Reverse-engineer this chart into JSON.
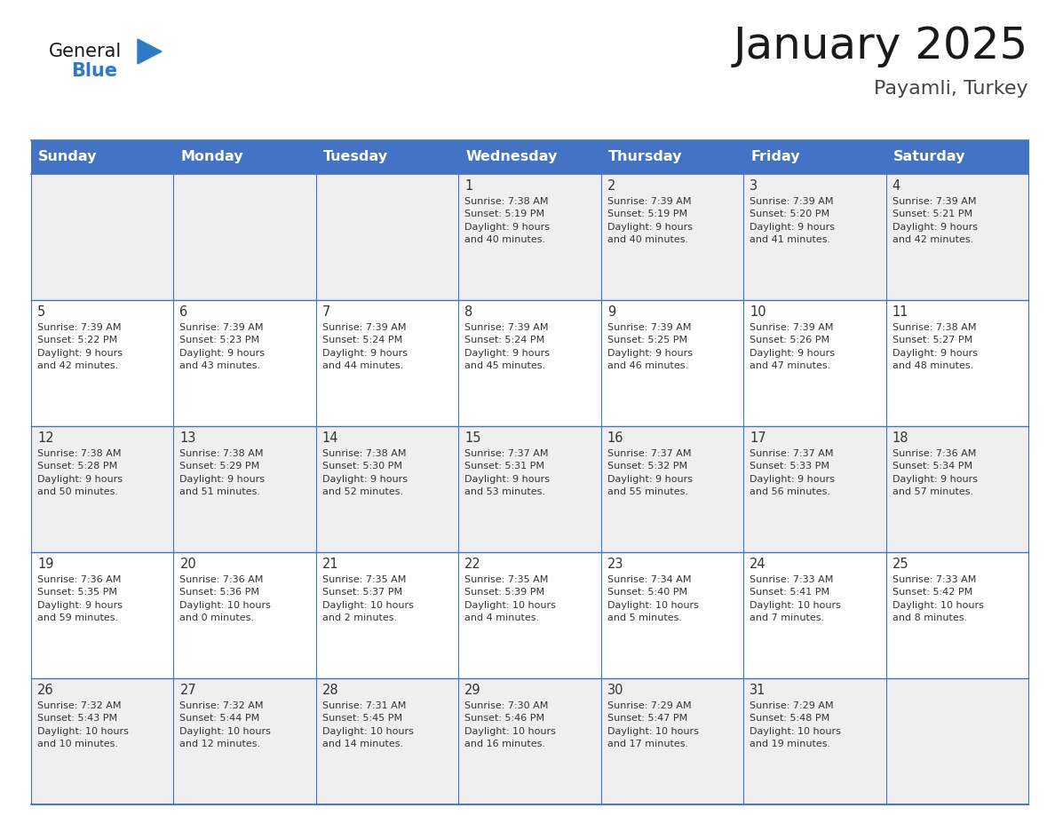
{
  "title": "January 2025",
  "subtitle": "Payamli, Turkey",
  "days_of_week": [
    "Sunday",
    "Monday",
    "Tuesday",
    "Wednesday",
    "Thursday",
    "Friday",
    "Saturday"
  ],
  "header_bg": "#4472C4",
  "header_text_color": "#FFFFFF",
  "row_bg_odd": "#EFEFEF",
  "row_bg_even": "#FFFFFF",
  "border_color": "#4472C4",
  "day_number_color": "#333333",
  "cell_text_color": "#333333",
  "title_color": "#1a1a1a",
  "subtitle_color": "#444444",
  "general_text_color": "#1a1a1a",
  "blue_text_color": "#2F7AC4",
  "triangle_color": "#2F7AC4",
  "calendar": [
    [
      {
        "day": "",
        "info": ""
      },
      {
        "day": "",
        "info": ""
      },
      {
        "day": "",
        "info": ""
      },
      {
        "day": "1",
        "info": "Sunrise: 7:38 AM\nSunset: 5:19 PM\nDaylight: 9 hours\nand 40 minutes."
      },
      {
        "day": "2",
        "info": "Sunrise: 7:39 AM\nSunset: 5:19 PM\nDaylight: 9 hours\nand 40 minutes."
      },
      {
        "day": "3",
        "info": "Sunrise: 7:39 AM\nSunset: 5:20 PM\nDaylight: 9 hours\nand 41 minutes."
      },
      {
        "day": "4",
        "info": "Sunrise: 7:39 AM\nSunset: 5:21 PM\nDaylight: 9 hours\nand 42 minutes."
      }
    ],
    [
      {
        "day": "5",
        "info": "Sunrise: 7:39 AM\nSunset: 5:22 PM\nDaylight: 9 hours\nand 42 minutes."
      },
      {
        "day": "6",
        "info": "Sunrise: 7:39 AM\nSunset: 5:23 PM\nDaylight: 9 hours\nand 43 minutes."
      },
      {
        "day": "7",
        "info": "Sunrise: 7:39 AM\nSunset: 5:24 PM\nDaylight: 9 hours\nand 44 minutes."
      },
      {
        "day": "8",
        "info": "Sunrise: 7:39 AM\nSunset: 5:24 PM\nDaylight: 9 hours\nand 45 minutes."
      },
      {
        "day": "9",
        "info": "Sunrise: 7:39 AM\nSunset: 5:25 PM\nDaylight: 9 hours\nand 46 minutes."
      },
      {
        "day": "10",
        "info": "Sunrise: 7:39 AM\nSunset: 5:26 PM\nDaylight: 9 hours\nand 47 minutes."
      },
      {
        "day": "11",
        "info": "Sunrise: 7:38 AM\nSunset: 5:27 PM\nDaylight: 9 hours\nand 48 minutes."
      }
    ],
    [
      {
        "day": "12",
        "info": "Sunrise: 7:38 AM\nSunset: 5:28 PM\nDaylight: 9 hours\nand 50 minutes."
      },
      {
        "day": "13",
        "info": "Sunrise: 7:38 AM\nSunset: 5:29 PM\nDaylight: 9 hours\nand 51 minutes."
      },
      {
        "day": "14",
        "info": "Sunrise: 7:38 AM\nSunset: 5:30 PM\nDaylight: 9 hours\nand 52 minutes."
      },
      {
        "day": "15",
        "info": "Sunrise: 7:37 AM\nSunset: 5:31 PM\nDaylight: 9 hours\nand 53 minutes."
      },
      {
        "day": "16",
        "info": "Sunrise: 7:37 AM\nSunset: 5:32 PM\nDaylight: 9 hours\nand 55 minutes."
      },
      {
        "day": "17",
        "info": "Sunrise: 7:37 AM\nSunset: 5:33 PM\nDaylight: 9 hours\nand 56 minutes."
      },
      {
        "day": "18",
        "info": "Sunrise: 7:36 AM\nSunset: 5:34 PM\nDaylight: 9 hours\nand 57 minutes."
      }
    ],
    [
      {
        "day": "19",
        "info": "Sunrise: 7:36 AM\nSunset: 5:35 PM\nDaylight: 9 hours\nand 59 minutes."
      },
      {
        "day": "20",
        "info": "Sunrise: 7:36 AM\nSunset: 5:36 PM\nDaylight: 10 hours\nand 0 minutes."
      },
      {
        "day": "21",
        "info": "Sunrise: 7:35 AM\nSunset: 5:37 PM\nDaylight: 10 hours\nand 2 minutes."
      },
      {
        "day": "22",
        "info": "Sunrise: 7:35 AM\nSunset: 5:39 PM\nDaylight: 10 hours\nand 4 minutes."
      },
      {
        "day": "23",
        "info": "Sunrise: 7:34 AM\nSunset: 5:40 PM\nDaylight: 10 hours\nand 5 minutes."
      },
      {
        "day": "24",
        "info": "Sunrise: 7:33 AM\nSunset: 5:41 PM\nDaylight: 10 hours\nand 7 minutes."
      },
      {
        "day": "25",
        "info": "Sunrise: 7:33 AM\nSunset: 5:42 PM\nDaylight: 10 hours\nand 8 minutes."
      }
    ],
    [
      {
        "day": "26",
        "info": "Sunrise: 7:32 AM\nSunset: 5:43 PM\nDaylight: 10 hours\nand 10 minutes."
      },
      {
        "day": "27",
        "info": "Sunrise: 7:32 AM\nSunset: 5:44 PM\nDaylight: 10 hours\nand 12 minutes."
      },
      {
        "day": "28",
        "info": "Sunrise: 7:31 AM\nSunset: 5:45 PM\nDaylight: 10 hours\nand 14 minutes."
      },
      {
        "day": "29",
        "info": "Sunrise: 7:30 AM\nSunset: 5:46 PM\nDaylight: 10 hours\nand 16 minutes."
      },
      {
        "day": "30",
        "info": "Sunrise: 7:29 AM\nSunset: 5:47 PM\nDaylight: 10 hours\nand 17 minutes."
      },
      {
        "day": "31",
        "info": "Sunrise: 7:29 AM\nSunset: 5:48 PM\nDaylight: 10 hours\nand 19 minutes."
      },
      {
        "day": "",
        "info": ""
      }
    ]
  ]
}
